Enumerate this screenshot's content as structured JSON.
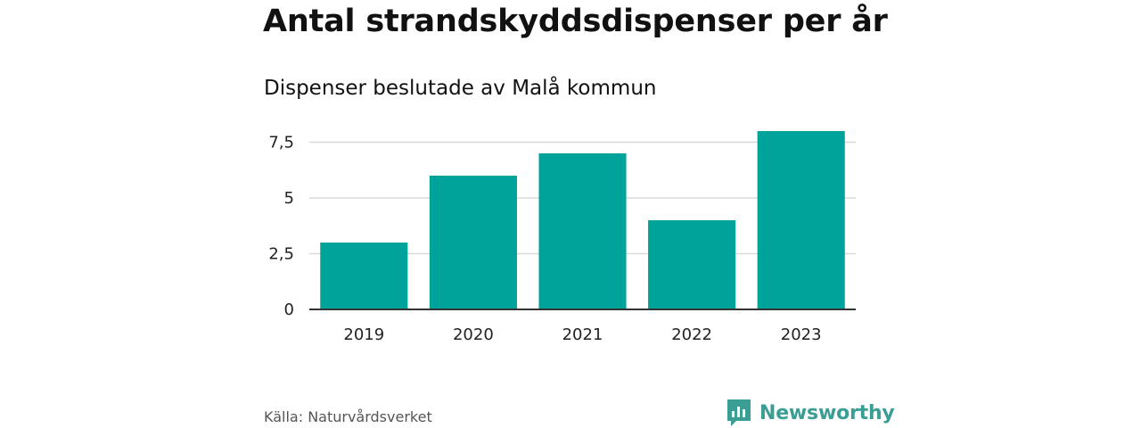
{
  "header": {
    "title": "Antal strandskyddsdispenser per år",
    "subtitle": "Dispenser beslutade av Malå kommun"
  },
  "colors": {
    "bar": "#00a39a",
    "grid": "#d9d9d9",
    "axis": "#333333",
    "brand": "#3a9e95"
  },
  "chart_data": {
    "type": "bar",
    "title": "Antal strandskyddsdispenser per år",
    "subtitle": "Dispenser beslutade av Malå kommun",
    "xlabel": "",
    "ylabel": "",
    "categories": [
      "2019",
      "2020",
      "2021",
      "2022",
      "2023"
    ],
    "values": [
      3,
      6,
      7,
      4,
      8
    ],
    "ylim": [
      0,
      8
    ],
    "yticks": [
      0,
      2.5,
      5,
      7.5
    ],
    "ytick_labels": [
      "0",
      "2,5",
      "5",
      "7,5"
    ],
    "grid": true,
    "legend": "none"
  },
  "footer": {
    "source": "Källa: Naturvårdsverket",
    "brand_name": "Newsworthy",
    "brand_icon": "newsworthy-logo-icon"
  }
}
